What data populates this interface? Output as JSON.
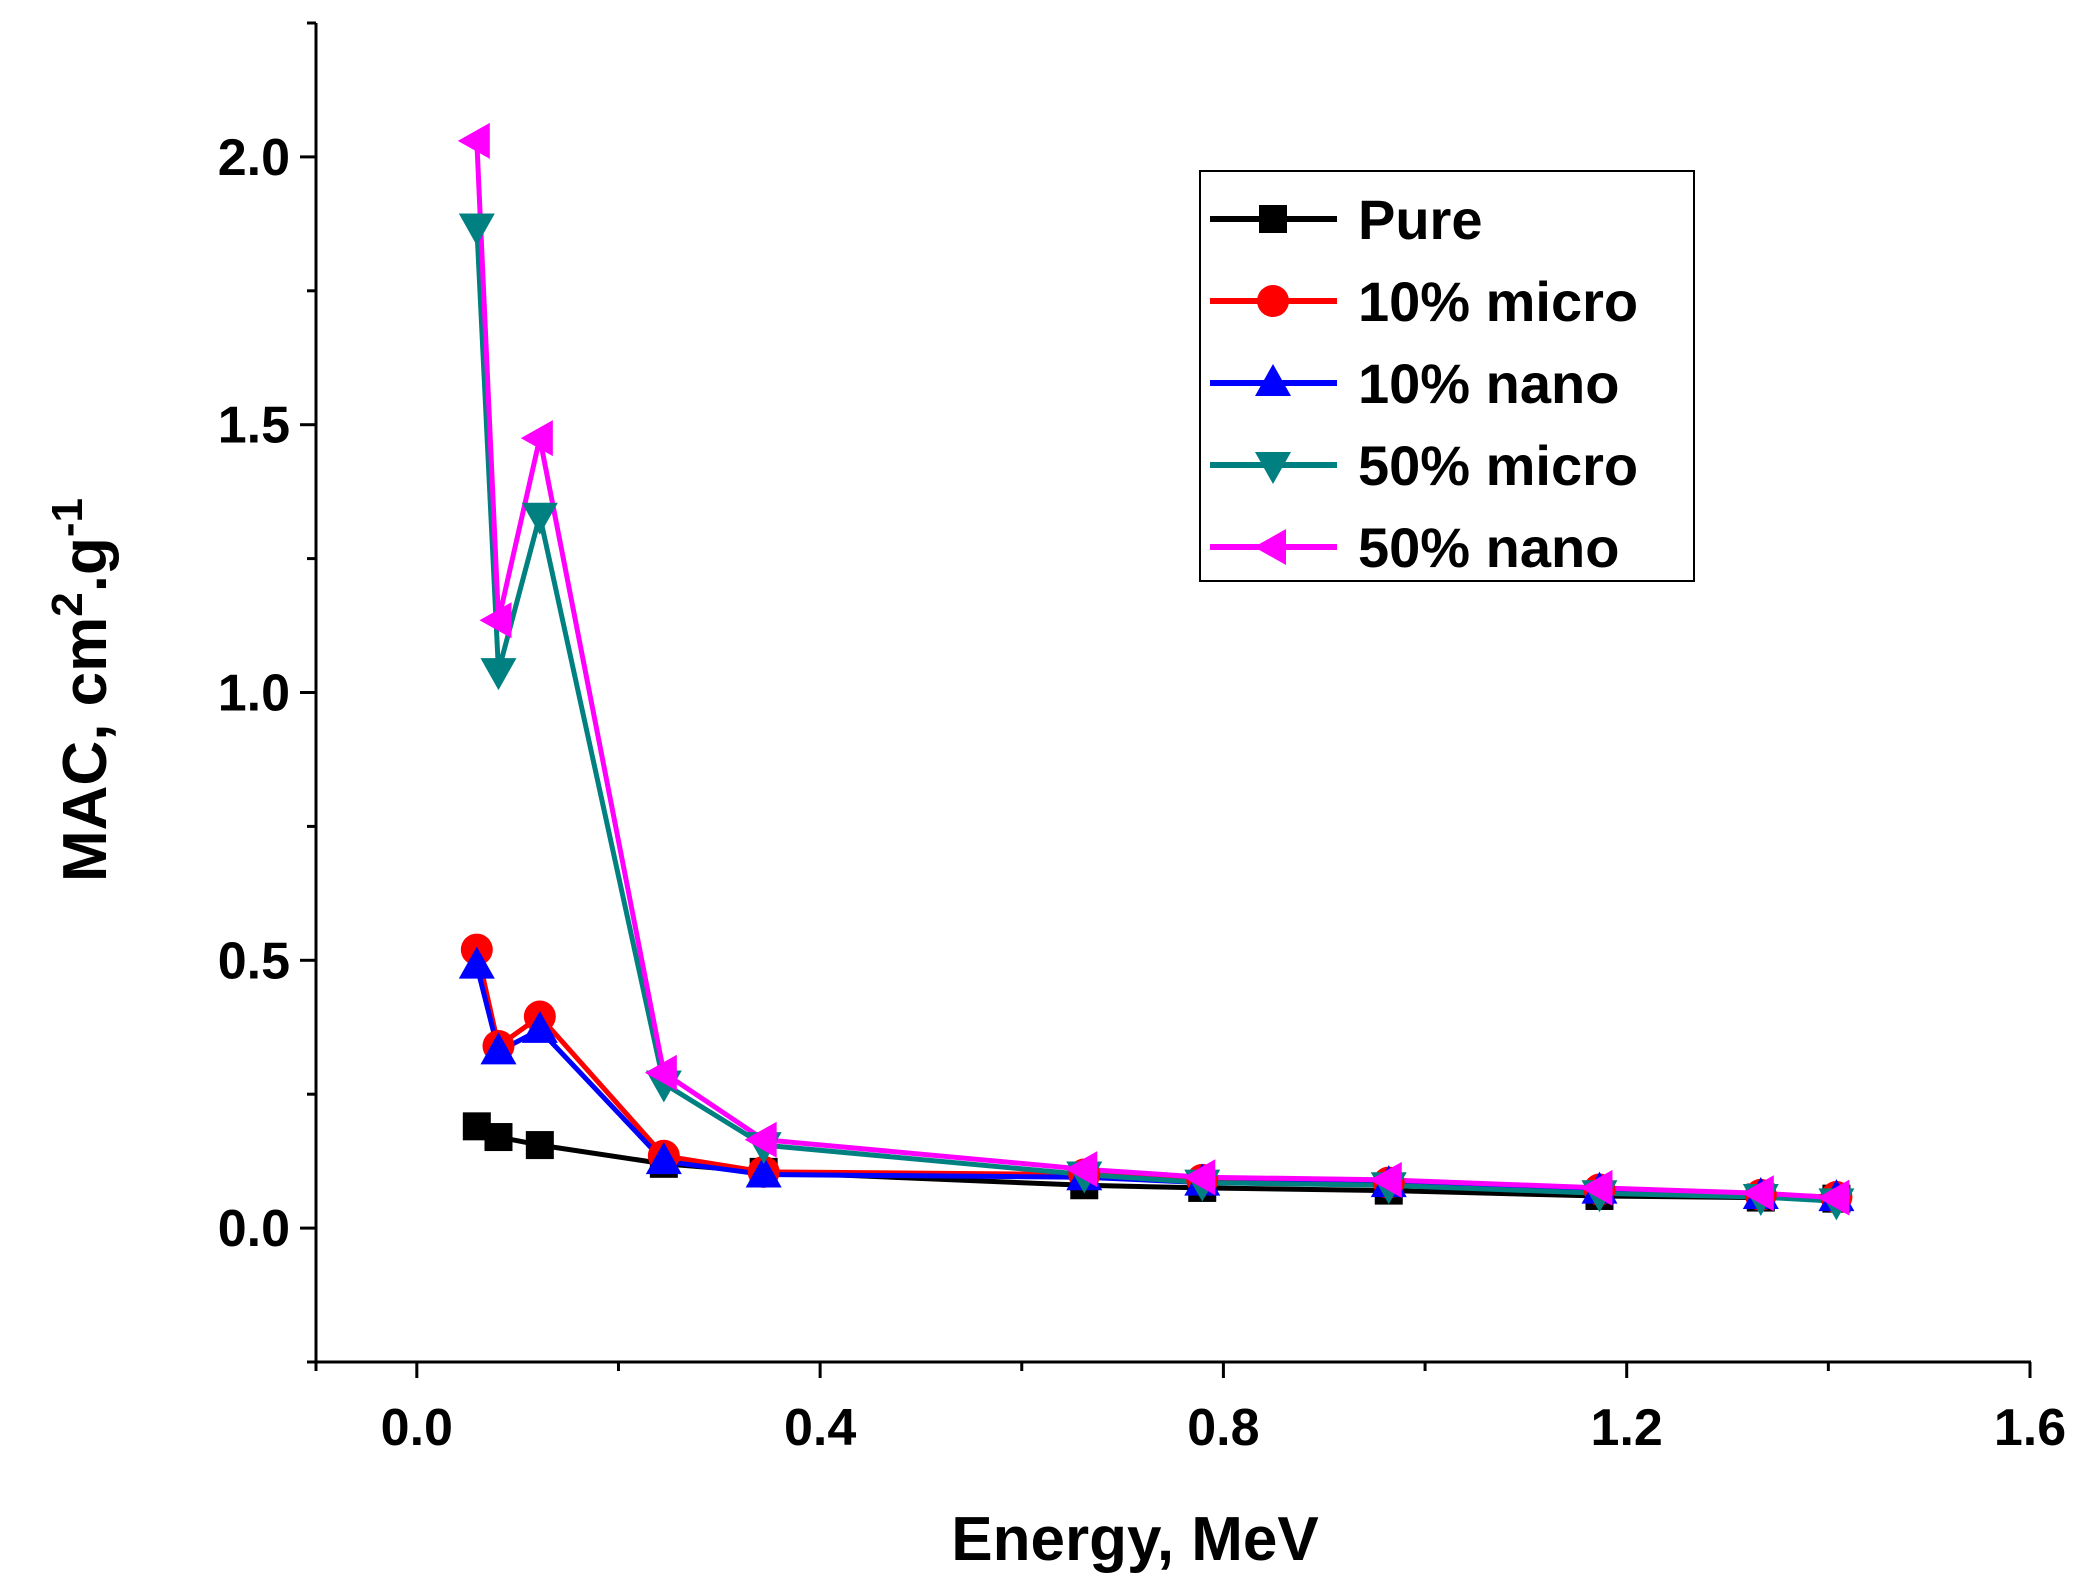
{
  "chart_data": {
    "type": "line",
    "title": "",
    "xlabel": "Energy, MeV",
    "ylabel": "MAC, cm",
    "ylabel_sup1": "2",
    "ylabel_mid": ".g",
    "ylabel_sup2": "-1",
    "xlim": [
      -0.1,
      1.6
    ],
    "ylim": [
      -0.25,
      2.25
    ],
    "x_ticks": [
      0.0,
      0.4,
      0.8,
      1.2,
      1.6
    ],
    "x_tick_labels": [
      "0.0",
      "0.4",
      "0.8",
      "1.2",
      "1.6"
    ],
    "x_minor_ticks": [
      -0.1,
      0.2,
      0.6,
      1.0,
      1.4
    ],
    "y_ticks": [
      0.0,
      0.5,
      1.0,
      1.5,
      2.0
    ],
    "y_tick_labels": [
      "0.0",
      "0.5",
      "1.0",
      "1.5",
      "2.0"
    ],
    "y_minor_ticks": [
      -0.25,
      0.25,
      0.75,
      1.25,
      1.75,
      2.25
    ],
    "grid": false,
    "legend_position": "top-right",
    "x": [
      0.0595,
      0.081,
      0.122,
      0.245,
      0.344,
      0.662,
      0.779,
      0.964,
      1.173,
      1.333,
      1.408
    ],
    "series": [
      {
        "name": "Pure",
        "color": "#000000",
        "marker": "square",
        "values": [
          0.19,
          0.17,
          0.155,
          0.12,
          0.105,
          0.08,
          0.075,
          0.07,
          0.06,
          0.057,
          0.055
        ]
      },
      {
        "name": "10% micro",
        "color": "#ff0000",
        "marker": "circle",
        "values": [
          0.52,
          0.34,
          0.395,
          0.135,
          0.105,
          0.1,
          0.09,
          0.085,
          0.072,
          0.062,
          0.058
        ]
      },
      {
        "name": "10% nano",
        "color": "#0000ff",
        "marker": "triangle-up",
        "values": [
          0.49,
          0.33,
          0.37,
          0.125,
          0.1,
          0.095,
          0.085,
          0.082,
          0.07,
          0.06,
          0.056
        ]
      },
      {
        "name": "50% micro",
        "color": "#008080",
        "marker": "triangle-down",
        "values": [
          1.87,
          1.04,
          1.33,
          0.27,
          0.155,
          0.1,
          0.085,
          0.08,
          0.065,
          0.058,
          0.05
        ]
      },
      {
        "name": "50% nano",
        "color": "#ff00ff",
        "marker": "triangle-left",
        "values": [
          2.03,
          1.135,
          1.475,
          0.29,
          0.165,
          0.11,
          0.095,
          0.09,
          0.075,
          0.065,
          0.057
        ]
      }
    ]
  }
}
